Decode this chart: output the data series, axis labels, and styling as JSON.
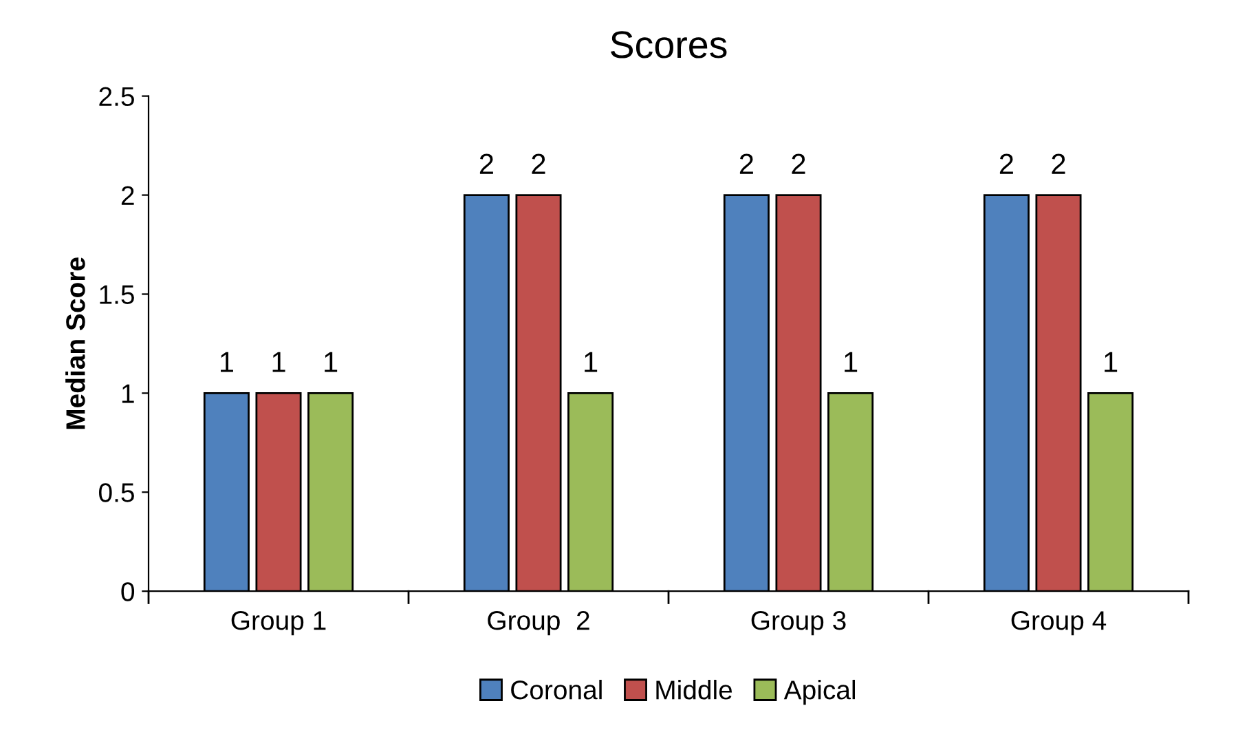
{
  "chart_data": {
    "type": "bar",
    "title": "Scores",
    "ylabel": "Median Score",
    "categories": [
      "Group 1",
      "Group  2",
      "Group 3",
      "Group 4"
    ],
    "series": [
      {
        "name": "Coronal",
        "color": "#4f81bd",
        "values": [
          1,
          2,
          2,
          2
        ]
      },
      {
        "name": "Middle",
        "color": "#c0504d",
        "values": [
          1,
          2,
          2,
          2
        ]
      },
      {
        "name": "Apical",
        "color": "#9bbb59",
        "values": [
          1,
          1,
          1,
          1
        ]
      }
    ],
    "ylim": [
      0,
      2.5
    ],
    "yticks": [
      0,
      0.5,
      1,
      1.5,
      2,
      2.5
    ],
    "grid": false,
    "legend": "bottom",
    "data_labels": true
  }
}
